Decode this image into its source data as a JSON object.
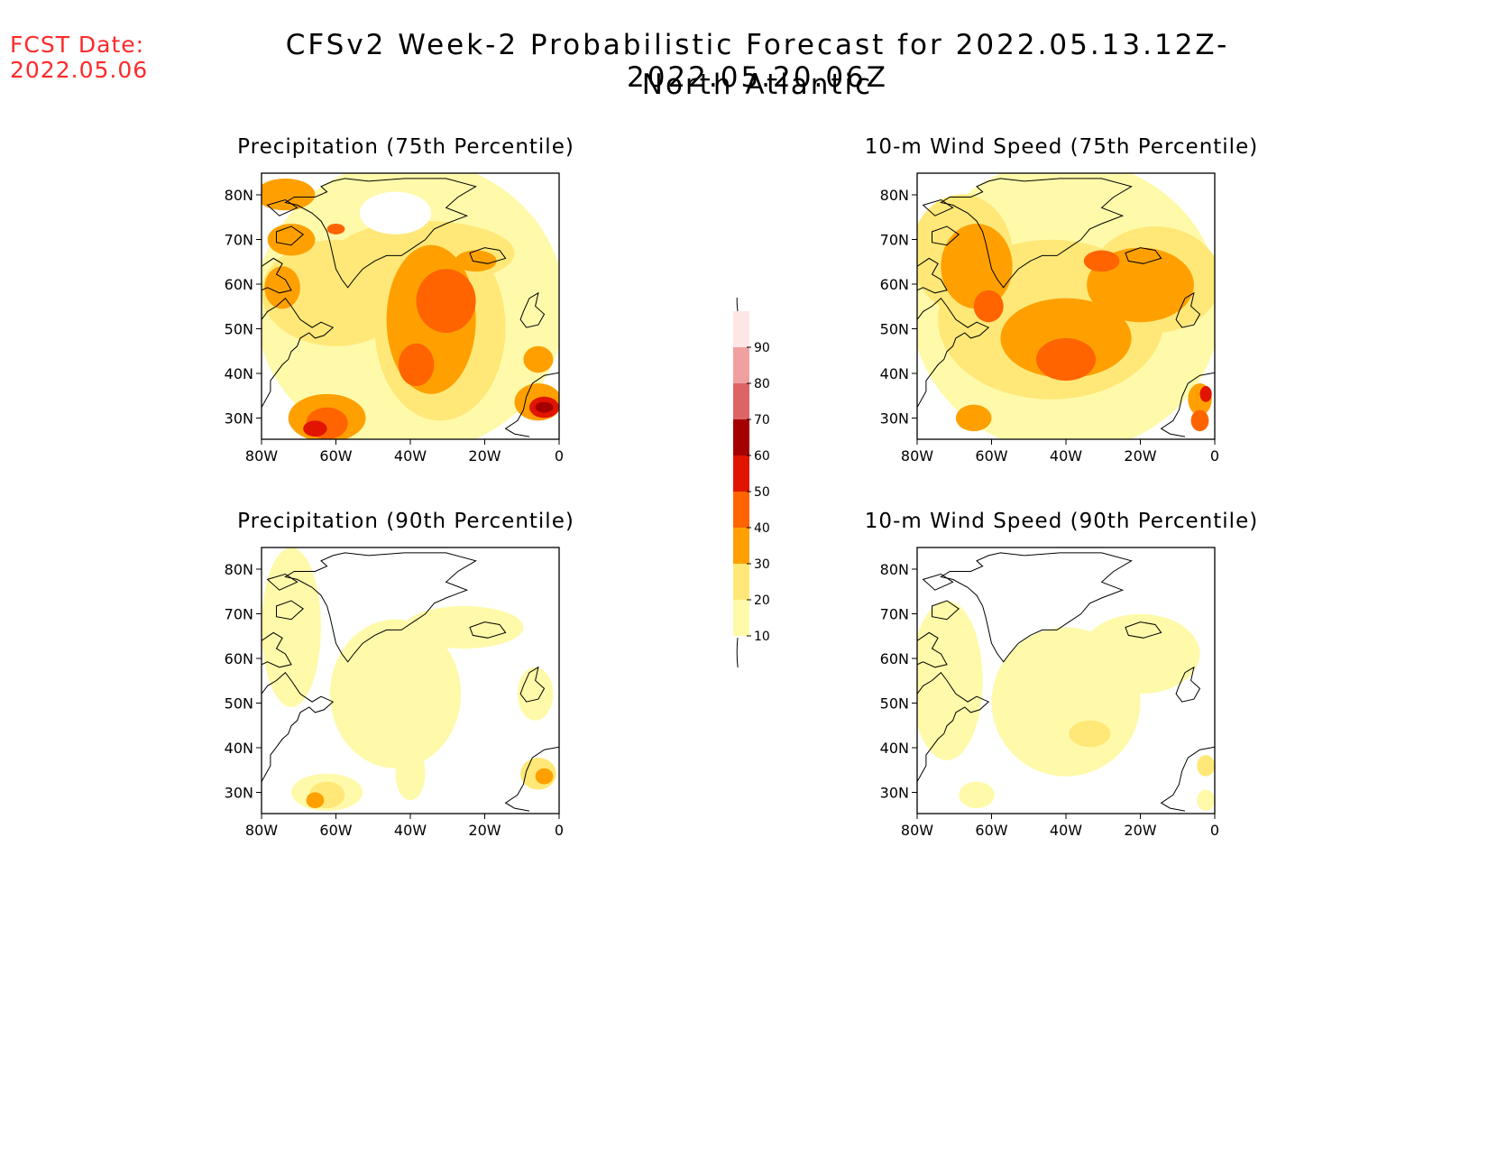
{
  "header": {
    "fcst_label": "FCST Date:",
    "fcst_date": "2022.05.06",
    "title": "CFSv2 Week-2 Probabilistic Forecast for 2022.05.13.12Z-2022.05.20.06Z",
    "region": "North Atlantic"
  },
  "axes": {
    "lat_ticks": [
      "80N",
      "70N",
      "60N",
      "50N",
      "40N",
      "30N"
    ],
    "lon_ticks": [
      "80W",
      "60W",
      "40W",
      "20W",
      "0"
    ]
  },
  "panels": [
    {
      "title": "Precipitation (75th Percentile)"
    },
    {
      "title": "10-m Wind Speed (75th Percentile)"
    },
    {
      "title": "Precipitation (90th Percentile)"
    },
    {
      "title": "10-m Wind Speed (90th Percentile)"
    }
  ],
  "legend": {
    "levels": [
      "10",
      "20",
      "30",
      "40",
      "50",
      "60",
      "70",
      "80",
      "90"
    ],
    "colors": [
      "#fffaaa",
      "#ffe878",
      "#ffa000",
      "#ff6400",
      "#e11400",
      "#a50000",
      "#dc6464",
      "#f0a0a0",
      "#ffe6e6"
    ]
  }
}
